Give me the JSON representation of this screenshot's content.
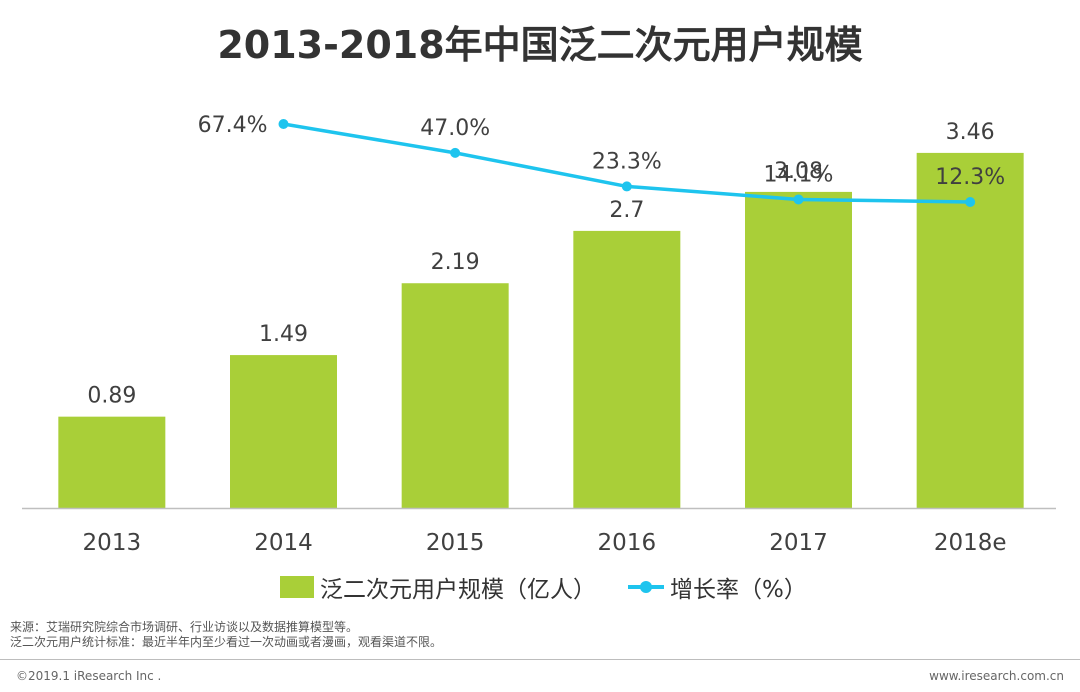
{
  "colors": {
    "bar": "#a9cf38",
    "line": "#1ec4ee",
    "axis": "#bfbfbf",
    "text": "#404040"
  },
  "chart_data": {
    "type": "bar",
    "title": "2013-2018年中国泛二次元用户规模",
    "categories": [
      "2013",
      "2014",
      "2015",
      "2016",
      "2017",
      "2018e"
    ],
    "series": [
      {
        "name": "泛二次元用户规模（亿人）",
        "kind": "bar",
        "values": [
          0.89,
          1.49,
          2.19,
          2.7,
          3.08,
          3.46
        ],
        "labels": [
          "0.89",
          "1.49",
          "2.19",
          "2.7",
          "3.08",
          "3.46"
        ]
      },
      {
        "name": "增长率（%）",
        "kind": "line",
        "x": [
          "2014",
          "2015",
          "2016",
          "2017",
          "2018e"
        ],
        "values": [
          67.4,
          47.0,
          23.3,
          14.1,
          12.3
        ],
        "labels": [
          "67.4%",
          "47.0%",
          "23.3%",
          "14.1%",
          "12.3%"
        ]
      }
    ],
    "ylim": [
      0,
      3.8
    ],
    "y2lim": [
      0,
      75
    ],
    "legend_position": "bottom"
  },
  "notes": {
    "source": "来源：艾瑞研究院综合市场调研、行业访谈以及数据推算模型等。",
    "definition": "泛二次元用户统计标准：最近半年内至少看过一次动画或者漫画，观看渠道不限。"
  },
  "footer": {
    "copyright": "©2019.1 iResearch Inc .",
    "website": "www.iresearch.com.cn"
  }
}
